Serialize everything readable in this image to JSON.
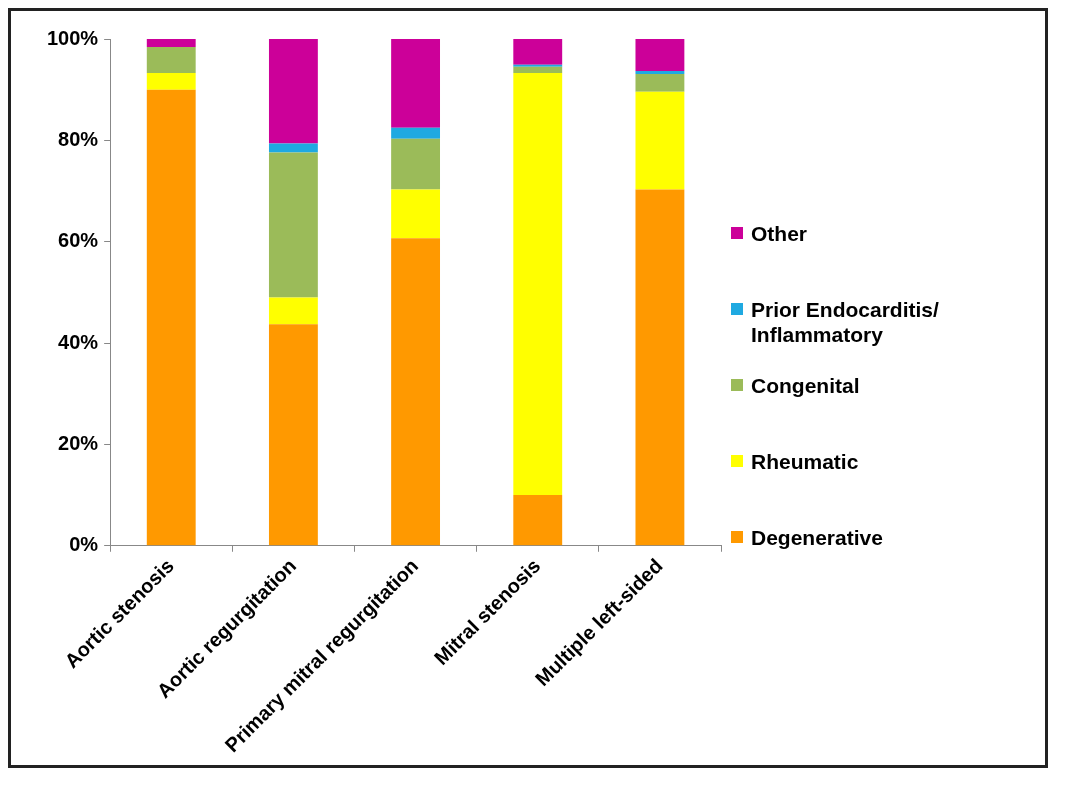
{
  "chart_data": {
    "type": "bar",
    "stacked": true,
    "categories": [
      "Aortic stenosis",
      "Aortic regurgitation",
      "Primary mitral regurgitation",
      "Mitral stenosis",
      "Multiple left-sided"
    ],
    "series": [
      {
        "name": "Degenerative",
        "color": "#ff9900",
        "values": [
          90,
          43.7,
          60.7,
          10,
          70.3
        ]
      },
      {
        "name": "Rheumatic",
        "color": "#ffff00",
        "values": [
          3.3,
          5.3,
          9.6,
          83.3,
          19.3
        ]
      },
      {
        "name": "Congenital",
        "color": "#9bbb59",
        "values": [
          5.1,
          28.6,
          10,
          1.2,
          3.5
        ]
      },
      {
        "name": "Prior Endocarditis/ Inflammatory",
        "color": "#1fa9e1",
        "values": [
          0,
          1.8,
          2.2,
          0.4,
          0.6
        ]
      },
      {
        "name": "Other",
        "color": "#cc0099",
        "values": [
          1.6,
          20.6,
          17.5,
          5.1,
          6.3
        ]
      }
    ],
    "ylim": [
      0,
      100
    ],
    "yticks": [
      {
        "value": 0,
        "label": "0%"
      },
      {
        "value": 20,
        "label": "20%"
      },
      {
        "value": 40,
        "label": "40%"
      },
      {
        "value": 60,
        "label": "60%"
      },
      {
        "value": 80,
        "label": "80%"
      },
      {
        "value": 100,
        "label": "100%"
      }
    ],
    "grid": false,
    "legend": "right"
  }
}
